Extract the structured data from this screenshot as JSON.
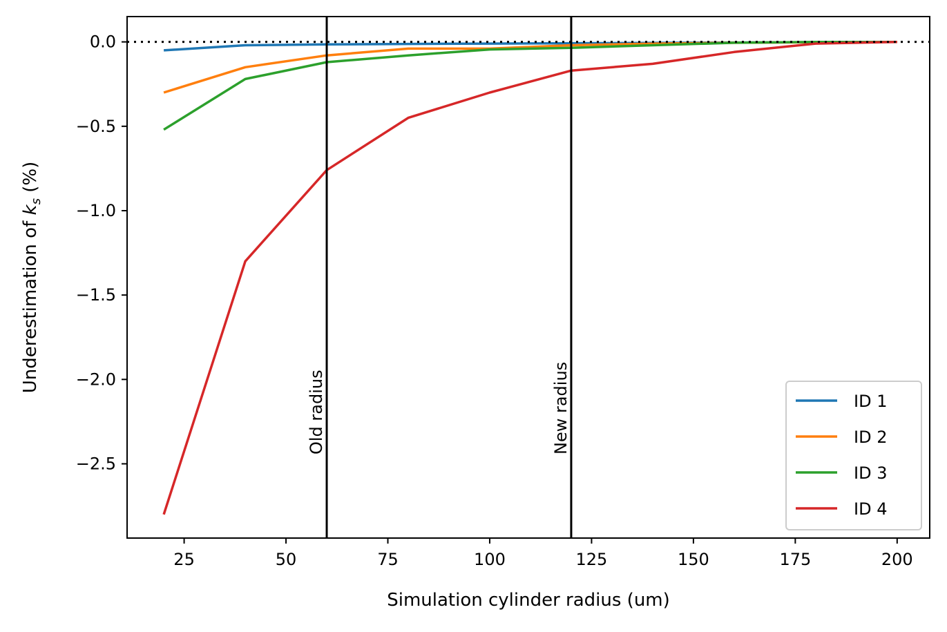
{
  "chart_data": {
    "type": "line",
    "title": "",
    "xlabel": "Simulation cylinder radius (um)",
    "ylabel_prefix": "Underestimation of ",
    "ylabel_symbol": "k",
    "ylabel_subscript": "s",
    "ylabel_suffix": " (%)",
    "x": [
      20,
      40,
      60,
      80,
      100,
      120,
      140,
      160,
      180,
      200
    ],
    "xlim": [
      11,
      208
    ],
    "ylim": [
      -2.94,
      0.15
    ],
    "xticks": [
      25,
      50,
      75,
      100,
      125,
      150,
      175,
      200
    ],
    "xtick_labels": [
      "25",
      "50",
      "75",
      "100",
      "125",
      "150",
      "175",
      "200"
    ],
    "yticks": [
      0.0,
      -0.5,
      -1.0,
      -1.5,
      -2.0,
      -2.5
    ],
    "ytick_labels": [
      "0.0",
      "−0.5",
      "−1.0",
      "−1.5",
      "−2.0",
      "−2.5"
    ],
    "grid": false,
    "legend_position": "lower-right",
    "series": [
      {
        "name": "ID 1",
        "color": "#1f77b4",
        "values": [
          -0.05,
          -0.02,
          -0.015,
          -0.012,
          -0.01,
          -0.008,
          -0.006,
          -0.004,
          -0.002,
          0.0
        ]
      },
      {
        "name": "ID 2",
        "color": "#ff7f0e",
        "values": [
          -0.3,
          -0.15,
          -0.08,
          -0.04,
          -0.04,
          -0.02,
          -0.01,
          -0.005,
          -0.002,
          0.0
        ]
      },
      {
        "name": "ID 3",
        "color": "#2ca02c",
        "values": [
          -0.52,
          -0.22,
          -0.12,
          -0.08,
          -0.045,
          -0.035,
          -0.02,
          -0.005,
          0.0,
          0.0
        ]
      },
      {
        "name": "ID 4",
        "color": "#d62728",
        "values": [
          -2.8,
          -1.3,
          -0.76,
          -0.45,
          -0.3,
          -0.17,
          -0.13,
          -0.06,
          -0.01,
          0.0
        ]
      }
    ],
    "reference_lines": [
      {
        "orientation": "horizontal",
        "value": 0.0,
        "style": "dotted",
        "color": "#000000"
      }
    ],
    "vertical_markers": [
      {
        "x": 60,
        "label": "Old radius"
      },
      {
        "x": 120,
        "label": "New radius"
      }
    ]
  }
}
